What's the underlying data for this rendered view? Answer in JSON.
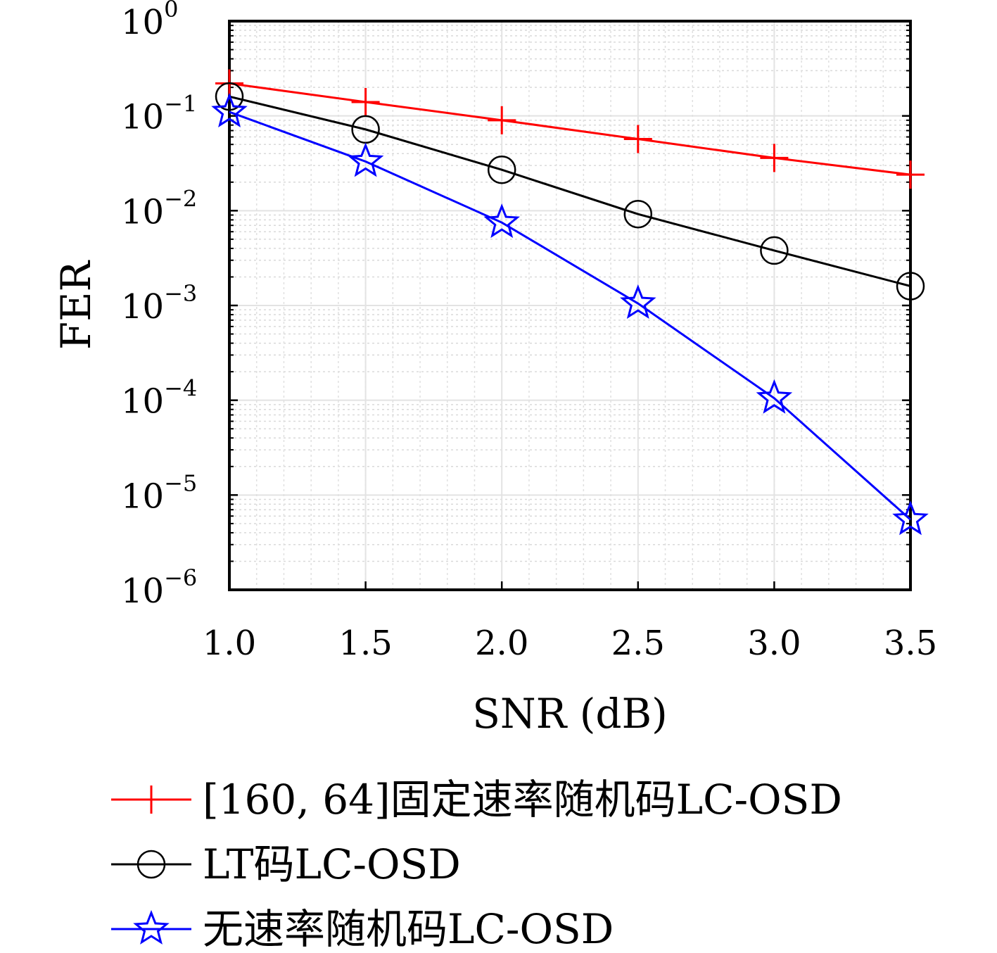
{
  "chart_data": {
    "type": "line",
    "xlabel": "SNR (dB)",
    "ylabel": "FER",
    "x": [
      1.0,
      1.5,
      2.0,
      2.5,
      3.0,
      3.5
    ],
    "x_tick_labels": [
      "1.0",
      "1.5",
      "2.0",
      "2.5",
      "3.0",
      "3.5"
    ],
    "xlim": [
      1.0,
      3.5
    ],
    "ylim": [
      1e-06,
      1
    ],
    "y_scale": "log",
    "y_tick_labels": [
      {
        "base": "10",
        "exp": "0",
        "value": 1
      },
      {
        "base": "10",
        "exp": "−1",
        "value": 0.1
      },
      {
        "base": "10",
        "exp": "−2",
        "value": 0.01
      },
      {
        "base": "10",
        "exp": "−3",
        "value": 0.001
      },
      {
        "base": "10",
        "exp": "−4",
        "value": 0.0001
      },
      {
        "base": "10",
        "exp": "−5",
        "value": 1e-05
      },
      {
        "base": "10",
        "exp": "−6",
        "value": 1e-06
      }
    ],
    "grid": true,
    "legend_position": "bottom",
    "series": [
      {
        "name": "[160, 64]固定速率随机码LC-OSD",
        "color": "#ff0000",
        "marker": "plus",
        "values": [
          0.22,
          0.14,
          0.09,
          0.057,
          0.036,
          0.024
        ]
      },
      {
        "name": "LT码LC-OSD",
        "color": "#000000",
        "marker": "circle",
        "values": [
          0.16,
          0.072,
          0.027,
          0.0092,
          0.0038,
          0.0016
        ]
      },
      {
        "name": "无速率随机码LC-OSD",
        "color": "#0000ff",
        "marker": "star",
        "values": [
          0.11,
          0.033,
          0.0075,
          0.00105,
          0.000105,
          5.5e-06
        ]
      }
    ]
  }
}
